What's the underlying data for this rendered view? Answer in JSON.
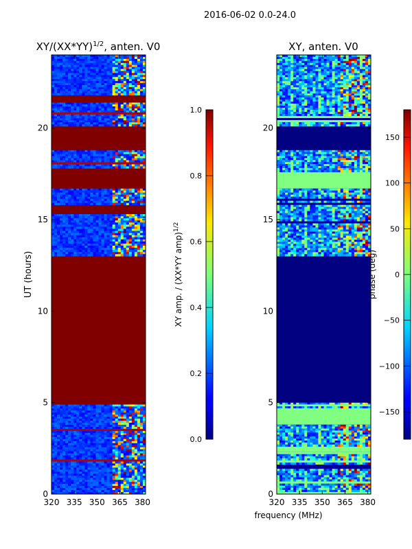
{
  "suptitle": "2016-06-02 0.0-24.0",
  "colors": {
    "dark_red": "#800000",
    "dark_blue": "#00007f",
    "light_green": "#7dff7a"
  },
  "chart_data": [
    {
      "id": "amplitude",
      "type": "heatmap",
      "title": "XY/(XX*YY)",
      "title_sup": "1/2",
      "title_tail": ", anten. V0",
      "ylabel": "UT (hours)",
      "xlim": [
        320,
        382
      ],
      "ylim": [
        0,
        24
      ],
      "xticks": [
        320,
        335,
        350,
        365,
        380
      ],
      "yticks": [
        0,
        5,
        10,
        15,
        20
      ],
      "colorbar": {
        "label": "XY amp. / (XX*YY amp)",
        "label_sup": "1/2",
        "range": [
          0.0,
          1.0
        ],
        "ticks": [
          "0.0",
          "0.2",
          "0.4",
          "0.6",
          "0.8",
          "1.0"
        ],
        "tick_values": [
          0.0,
          0.2,
          0.4,
          0.6,
          0.8,
          1.0
        ],
        "colormap": "jet"
      },
      "blocks": [
        {
          "from": 0.0,
          "to": 4.9,
          "state": "data"
        },
        {
          "from": 4.9,
          "to": 13.0,
          "state": "saturated",
          "value": 1.0
        },
        {
          "from": 13.0,
          "to": 15.3,
          "state": "data"
        },
        {
          "from": 15.3,
          "to": 15.8,
          "state": "saturated",
          "value": 1.0
        },
        {
          "from": 15.8,
          "to": 16.7,
          "state": "data"
        },
        {
          "from": 16.7,
          "to": 17.8,
          "state": "saturated",
          "value": 1.0
        },
        {
          "from": 17.8,
          "to": 18.8,
          "state": "data"
        },
        {
          "from": 18.8,
          "to": 20.1,
          "state": "saturated",
          "value": 1.0
        },
        {
          "from": 20.1,
          "to": 21.4,
          "state": "data"
        },
        {
          "from": 21.4,
          "to": 21.8,
          "state": "saturated",
          "value": 1.0
        },
        {
          "from": 21.8,
          "to": 24.0,
          "state": "data"
        }
      ]
    },
    {
      "id": "phase",
      "type": "heatmap",
      "title": "XY, anten. V0",
      "xlabel": "frequency (MHz)",
      "xlim": [
        320,
        382
      ],
      "ylim": [
        0,
        24
      ],
      "xticks": [
        320,
        335,
        350,
        365,
        380
      ],
      "yticks": [
        0,
        5,
        10,
        15,
        20
      ],
      "colorbar": {
        "label": "phase (deg)",
        "range": [
          -180,
          180
        ],
        "ticks": [
          "−150",
          "−100",
          "−50",
          "0",
          "50",
          "100",
          "150"
        ],
        "tick_values": [
          -150,
          -100,
          -50,
          0,
          50,
          100,
          150
        ],
        "colormap": "jet"
      },
      "blocks": [
        {
          "from": 0.0,
          "to": 2.3,
          "state": "data"
        },
        {
          "from": 2.3,
          "to": 2.6,
          "state": "constant",
          "value": 0
        },
        {
          "from": 2.6,
          "to": 3.8,
          "state": "data"
        },
        {
          "from": 3.8,
          "to": 4.7,
          "state": "constant",
          "value": 0
        },
        {
          "from": 4.7,
          "to": 5.0,
          "state": "data"
        },
        {
          "from": 5.0,
          "to": 13.0,
          "state": "constant",
          "value": -180
        },
        {
          "from": 13.0,
          "to": 16.7,
          "state": "data"
        },
        {
          "from": 16.7,
          "to": 17.6,
          "state": "constant",
          "value": 0
        },
        {
          "from": 17.6,
          "to": 18.8,
          "state": "data"
        },
        {
          "from": 18.8,
          "to": 20.1,
          "state": "constant",
          "value": -180
        },
        {
          "from": 20.1,
          "to": 21.9,
          "state": "data"
        },
        {
          "from": 21.9,
          "to": 24.0,
          "state": "data"
        }
      ]
    }
  ]
}
